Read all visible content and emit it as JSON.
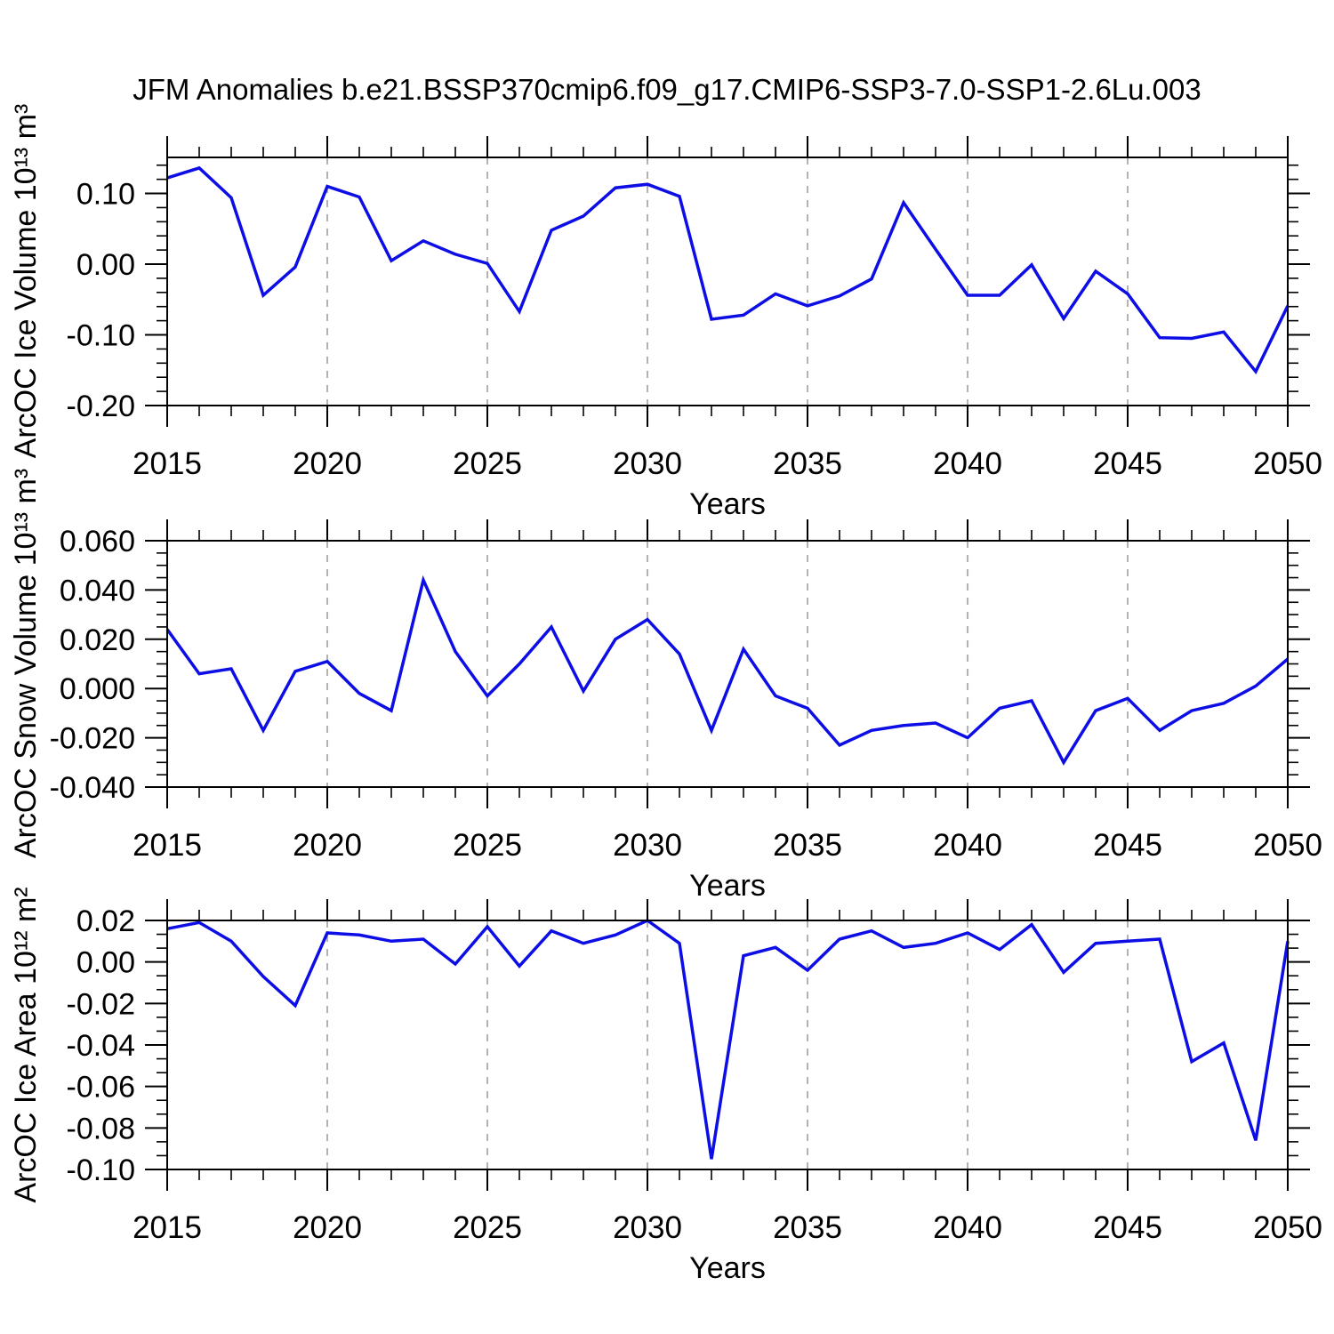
{
  "title": "JFM Anomalies b.e21.BSSP370cmip6.f09_g17.CMIP6-SSP3-7.0-SSP1-2.6Lu.003",
  "style": {
    "line_color": "#0D0DE6",
    "axis_color": "#000000",
    "grid_color": "#999999",
    "background": "#FFFFFF"
  },
  "chart_data": [
    {
      "type": "line",
      "ylabel": "ArcOC Ice Volume 10¹³ m³",
      "xlabel": "Years",
      "xlim": [
        2015,
        2050
      ],
      "ylim": [
        -0.2,
        0.151
      ],
      "x": [
        2015,
        2016,
        2017,
        2018,
        2019,
        2020,
        2021,
        2022,
        2023,
        2024,
        2025,
        2026,
        2027,
        2028,
        2029,
        2030,
        2031,
        2032,
        2033,
        2034,
        2035,
        2036,
        2037,
        2038,
        2039,
        2040,
        2041,
        2042,
        2043,
        2044,
        2045,
        2046,
        2047,
        2048,
        2049,
        2050
      ],
      "values": [
        0.122,
        0.136,
        0.094,
        -0.044,
        -0.004,
        0.11,
        0.095,
        0.005,
        0.033,
        0.014,
        0.001,
        -0.067,
        0.048,
        0.068,
        0.108,
        0.113,
        0.096,
        -0.078,
        -0.072,
        -0.042,
        -0.059,
        -0.045,
        -0.021,
        0.087,
        0.021,
        -0.044,
        -0.044,
        -0.001,
        -0.077,
        -0.01,
        -0.042,
        -0.104,
        -0.105,
        -0.096,
        -0.152,
        -0.059
      ],
      "xticks": [
        {
          "value": 2015,
          "label": "2015"
        },
        {
          "value": 2020,
          "label": "2020"
        },
        {
          "value": 2025,
          "label": "2025"
        },
        {
          "value": 2030,
          "label": "2030"
        },
        {
          "value": 2035,
          "label": "2035"
        },
        {
          "value": 2040,
          "label": "2040"
        },
        {
          "value": 2045,
          "label": "2045"
        },
        {
          "value": 2050,
          "label": "2050"
        }
      ],
      "yticks": [
        {
          "value": 0.1,
          "label": "0.10"
        },
        {
          "value": 0.0,
          "label": "0.00"
        },
        {
          "value": -0.1,
          "label": "-0.10"
        },
        {
          "value": -0.2,
          "label": "-0.20"
        }
      ],
      "y_major_step": 0.1,
      "y_minor_per_major": 5,
      "x_minor_step": 1,
      "grid_x": [
        2020,
        2025,
        2030,
        2035,
        2040,
        2045
      ],
      "grid": "vertical-dashed"
    },
    {
      "type": "line",
      "ylabel": "ArcOC Snow Volume 10¹³ m³",
      "xlabel": "Years",
      "xlim": [
        2015,
        2050
      ],
      "ylim": [
        -0.04,
        0.06
      ],
      "x": [
        2015,
        2016,
        2017,
        2018,
        2019,
        2020,
        2021,
        2022,
        2023,
        2024,
        2025,
        2026,
        2027,
        2028,
        2029,
        2030,
        2031,
        2032,
        2033,
        2034,
        2035,
        2036,
        2037,
        2038,
        2039,
        2040,
        2041,
        2042,
        2043,
        2044,
        2045,
        2046,
        2047,
        2048,
        2049,
        2050
      ],
      "values": [
        0.024,
        0.006,
        0.008,
        -0.017,
        0.007,
        0.011,
        -0.002,
        -0.009,
        0.044,
        0.015,
        -0.003,
        0.01,
        0.025,
        -0.001,
        0.02,
        0.028,
        0.014,
        -0.017,
        0.016,
        -0.003,
        -0.008,
        -0.023,
        -0.017,
        -0.015,
        -0.014,
        -0.02,
        -0.008,
        -0.005,
        -0.03,
        -0.009,
        -0.004,
        -0.017,
        -0.009,
        -0.006,
        0.001,
        0.012
      ],
      "xticks": [
        {
          "value": 2015,
          "label": "2015"
        },
        {
          "value": 2020,
          "label": "2020"
        },
        {
          "value": 2025,
          "label": "2025"
        },
        {
          "value": 2030,
          "label": "2030"
        },
        {
          "value": 2035,
          "label": "2035"
        },
        {
          "value": 2040,
          "label": "2040"
        },
        {
          "value": 2045,
          "label": "2045"
        },
        {
          "value": 2050,
          "label": "2050"
        }
      ],
      "yticks": [
        {
          "value": 0.06,
          "label": "0.060"
        },
        {
          "value": 0.04,
          "label": "0.040"
        },
        {
          "value": 0.02,
          "label": "0.020"
        },
        {
          "value": 0.0,
          "label": "0.000"
        },
        {
          "value": -0.02,
          "label": "-0.020"
        },
        {
          "value": -0.04,
          "label": "-0.040"
        }
      ],
      "y_major_step": 0.02,
      "y_minor_per_major": 4,
      "x_minor_step": 1,
      "grid_x": [
        2020,
        2025,
        2030,
        2035,
        2040,
        2045
      ],
      "grid": "vertical-dashed"
    },
    {
      "type": "line",
      "ylabel": "ArcOC Ice Area 10¹² m²",
      "xlabel": "Years",
      "xlim": [
        2015,
        2050
      ],
      "ylim": [
        -0.1,
        0.02
      ],
      "x": [
        2015,
        2016,
        2017,
        2018,
        2019,
        2020,
        2021,
        2022,
        2023,
        2024,
        2025,
        2026,
        2027,
        2028,
        2029,
        2030,
        2031,
        2032,
        2033,
        2034,
        2035,
        2036,
        2037,
        2038,
        2039,
        2040,
        2041,
        2042,
        2043,
        2044,
        2045,
        2046,
        2047,
        2048,
        2049,
        2050
      ],
      "values": [
        0.016,
        0.019,
        0.01,
        -0.007,
        -0.021,
        0.014,
        0.013,
        0.01,
        0.011,
        -0.001,
        0.017,
        -0.002,
        0.015,
        0.009,
        0.013,
        0.02,
        0.009,
        -0.095,
        0.003,
        0.007,
        -0.004,
        0.011,
        0.015,
        0.007,
        0.009,
        0.014,
        0.006,
        0.018,
        -0.005,
        0.009,
        0.01,
        0.011,
        -0.048,
        -0.039,
        -0.086,
        0.01
      ],
      "xticks": [
        {
          "value": 2015,
          "label": "2015"
        },
        {
          "value": 2020,
          "label": "2020"
        },
        {
          "value": 2025,
          "label": "2025"
        },
        {
          "value": 2030,
          "label": "2030"
        },
        {
          "value": 2035,
          "label": "2035"
        },
        {
          "value": 2040,
          "label": "2040"
        },
        {
          "value": 2045,
          "label": "2045"
        },
        {
          "value": 2050,
          "label": "2050"
        }
      ],
      "yticks": [
        {
          "value": 0.02,
          "label": "0.02"
        },
        {
          "value": 0.0,
          "label": "0.00"
        },
        {
          "value": -0.02,
          "label": "-0.02"
        },
        {
          "value": -0.04,
          "label": "-0.04"
        },
        {
          "value": -0.06,
          "label": "-0.06"
        },
        {
          "value": -0.08,
          "label": "-0.08"
        },
        {
          "value": -0.1,
          "label": "-0.10"
        }
      ],
      "y_major_step": 0.02,
      "y_minor_per_major": 3,
      "x_minor_step": 1,
      "grid_x": [
        2020,
        2025,
        2030,
        2035,
        2040,
        2045
      ],
      "grid": "vertical-dashed"
    }
  ]
}
